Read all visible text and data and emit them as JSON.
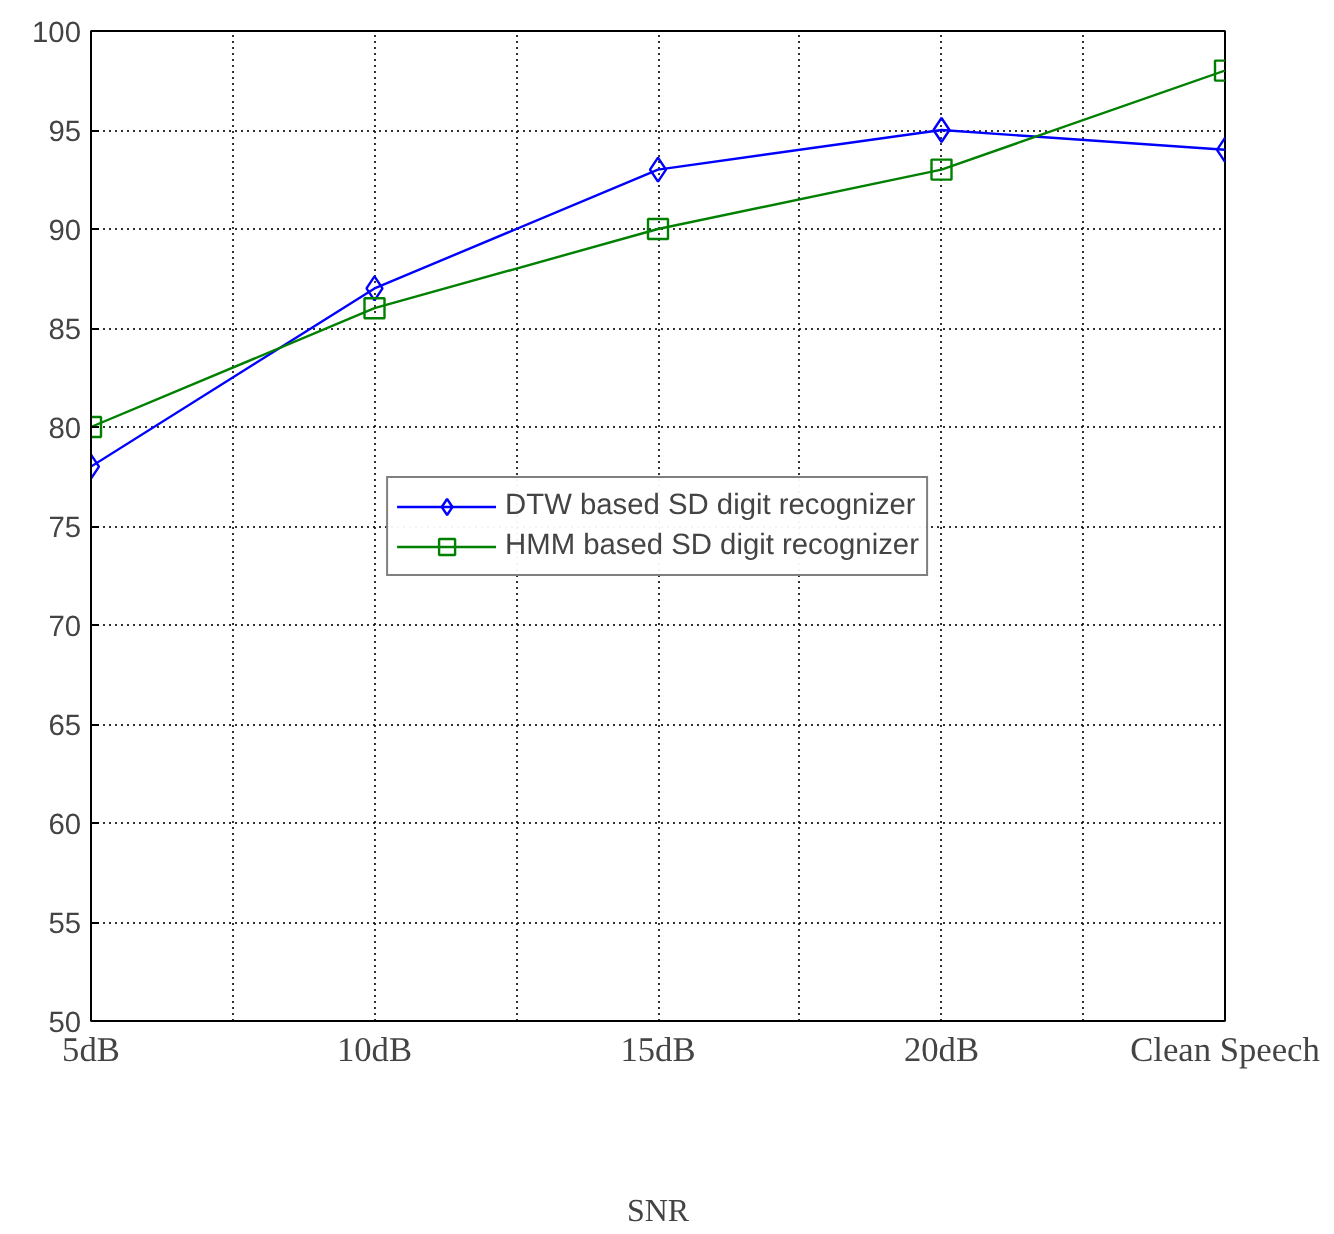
{
  "chart_data": {
    "type": "line",
    "xlabel": "SNR",
    "categories": [
      "5dB",
      "10dB",
      "15dB",
      "20dB",
      "Clean Speech"
    ],
    "series": [
      {
        "name": "DTW based SD digit recognizer",
        "color": "#0000ff",
        "marker": "diamond",
        "values": [
          78,
          87,
          93,
          95,
          94
        ]
      },
      {
        "name": "HMM based SD digit recognizer",
        "color": "#008000",
        "marker": "square",
        "values": [
          80,
          86,
          90,
          93,
          98
        ]
      }
    ],
    "ylim": [
      50,
      100
    ],
    "yticks": [
      50,
      55,
      60,
      65,
      70,
      75,
      80,
      85,
      90,
      95,
      100
    ],
    "grid": true,
    "legend": "center",
    "line_style": "solid"
  }
}
